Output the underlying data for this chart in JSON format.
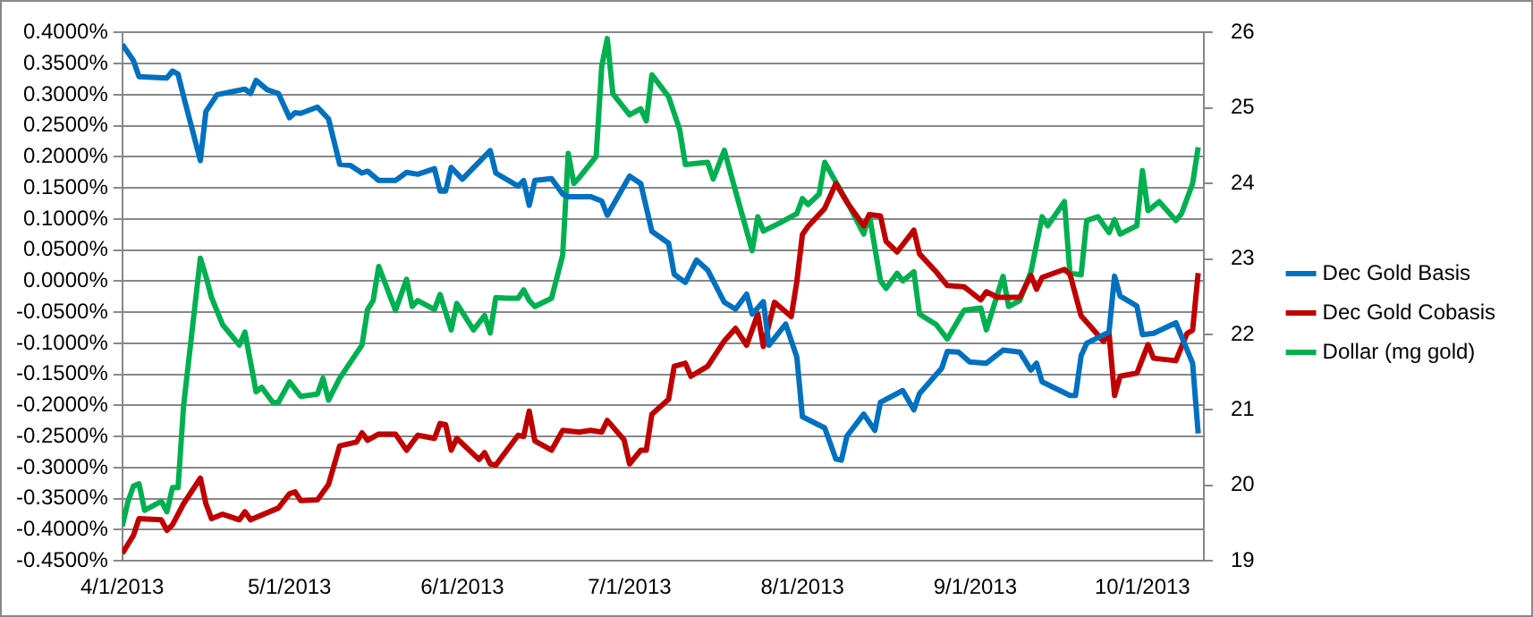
{
  "chart_data": {
    "type": "line",
    "grid": "y",
    "legend": "right",
    "marker": "none",
    "line_style": "solid",
    "xlim": [
      "2013-04-01",
      "2013-10-12"
    ],
    "xticks": [
      {
        "value": "2013-04-01",
        "label": "4/1/2013"
      },
      {
        "value": "2013-05-01",
        "label": "5/1/2013"
      },
      {
        "value": "2013-06-01",
        "label": "6/1/2013"
      },
      {
        "value": "2013-07-01",
        "label": "7/1/2013"
      },
      {
        "value": "2013-08-01",
        "label": "8/1/2013"
      },
      {
        "value": "2013-09-01",
        "label": "9/1/2013"
      },
      {
        "value": "2013-10-01",
        "label": "10/1/2013"
      }
    ],
    "ylim": [
      -0.45,
      0.4
    ],
    "yticks": [
      {
        "value": 0.4,
        "label": "0.4000%"
      },
      {
        "value": 0.35,
        "label": "0.3500%"
      },
      {
        "value": 0.3,
        "label": "0.3000%"
      },
      {
        "value": 0.25,
        "label": "0.2500%"
      },
      {
        "value": 0.2,
        "label": "0.2000%"
      },
      {
        "value": 0.15,
        "label": "0.1500%"
      },
      {
        "value": 0.1,
        "label": "0.1000%"
      },
      {
        "value": 0.05,
        "label": "0.0500%"
      },
      {
        "value": 0,
        "label": "0.0000%"
      },
      {
        "value": -0.05,
        "label": "-0.0500%"
      },
      {
        "value": -0.1,
        "label": "-0.1000%"
      },
      {
        "value": -0.15,
        "label": "-0.1500%"
      },
      {
        "value": -0.2,
        "label": "-0.2000%"
      },
      {
        "value": -0.25,
        "label": "-0.2500%"
      },
      {
        "value": -0.3,
        "label": "-0.3000%"
      },
      {
        "value": -0.35,
        "label": "-0.3500%"
      },
      {
        "value": -0.4,
        "label": "-0.4000%"
      },
      {
        "value": -0.45,
        "label": "-0.4500%"
      }
    ],
    "y2lim": [
      19,
      26
    ],
    "y2ticks": [
      19,
      20,
      21,
      22,
      23,
      24,
      25,
      26
    ],
    "series": [
      {
        "name": "Dec Gold Basis",
        "color": "#0070c0",
        "x": [
          "2013-04-01",
          "2013-04-03",
          "2013-04-04",
          "2013-04-09",
          "2013-04-10",
          "2013-04-11",
          "2013-04-12",
          "2013-04-15",
          "2013-04-16",
          "2013-04-18",
          "2013-04-23",
          "2013-04-24",
          "2013-04-25",
          "2013-04-27",
          "2013-04-29",
          "2013-05-01",
          "2013-05-02",
          "2013-05-03",
          "2013-05-06",
          "2013-05-08",
          "2013-05-10",
          "2013-05-12",
          "2013-05-14",
          "2013-05-15",
          "2013-05-17",
          "2013-05-20",
          "2013-05-22",
          "2013-05-24",
          "2013-05-27",
          "2013-05-28",
          "2013-05-29",
          "2013-05-30",
          "2013-06-01",
          "2013-06-06",
          "2013-06-07",
          "2013-06-11",
          "2013-06-12",
          "2013-06-13",
          "2013-06-14",
          "2013-06-17",
          "2013-06-19",
          "2013-06-20",
          "2013-06-24",
          "2013-06-26",
          "2013-06-27",
          "2013-07-01",
          "2013-07-03",
          "2013-07-05",
          "2013-07-08",
          "2013-07-09",
          "2013-07-11",
          "2013-07-13",
          "2013-07-15",
          "2013-07-18",
          "2013-07-20",
          "2013-07-22",
          "2013-07-23",
          "2013-07-25",
          "2013-07-26",
          "2013-07-29",
          "2013-07-31",
          "2013-08-01",
          "2013-08-05",
          "2013-08-07",
          "2013-08-08",
          "2013-08-09",
          "2013-08-12",
          "2013-08-14",
          "2013-08-15",
          "2013-08-19",
          "2013-08-21",
          "2013-08-22",
          "2013-08-26",
          "2013-08-27",
          "2013-08-29",
          "2013-08-31",
          "2013-09-03",
          "2013-09-06",
          "2013-09-09",
          "2013-09-11",
          "2013-09-12",
          "2013-09-13",
          "2013-09-18",
          "2013-09-19",
          "2013-09-20",
          "2013-09-21",
          "2013-09-25",
          "2013-09-26",
          "2013-09-27",
          "2013-09-30",
          "2013-10-01",
          "2013-10-03",
          "2013-10-07",
          "2013-10-10",
          "2013-10-11"
        ],
        "values": [
          0.381,
          0.355,
          0.329,
          0.327,
          0.338,
          0.333,
          0.297,
          0.194,
          0.273,
          0.3,
          0.309,
          0.302,
          0.323,
          0.308,
          0.302,
          0.263,
          0.271,
          0.27,
          0.28,
          0.261,
          0.188,
          0.186,
          0.174,
          0.177,
          0.162,
          0.162,
          0.175,
          0.172,
          0.181,
          0.145,
          0.145,
          0.183,
          0.164,
          0.21,
          0.174,
          0.153,
          0.162,
          0.122,
          0.162,
          0.165,
          0.14,
          0.136,
          0.136,
          0.129,
          0.106,
          0.169,
          0.157,
          0.08,
          0.061,
          0.011,
          -0.002,
          0.034,
          0.018,
          -0.034,
          -0.045,
          -0.021,
          -0.053,
          -0.033,
          -0.103,
          -0.069,
          -0.122,
          -0.218,
          -0.236,
          -0.286,
          -0.288,
          -0.249,
          -0.214,
          -0.24,
          -0.195,
          -0.176,
          -0.207,
          -0.181,
          -0.14,
          -0.113,
          -0.114,
          -0.13,
          -0.132,
          -0.111,
          -0.114,
          -0.143,
          -0.132,
          -0.162,
          -0.184,
          -0.184,
          -0.12,
          -0.1,
          -0.082,
          0.008,
          -0.024,
          -0.04,
          -0.086,
          -0.084,
          -0.067,
          -0.132,
          -0.245
        ]
      },
      {
        "name": "Dec Gold Cobasis",
        "color": "#c00000",
        "x": [
          "2013-04-01",
          "2013-04-03",
          "2013-04-04",
          "2013-04-08",
          "2013-04-09",
          "2013-04-10",
          "2013-04-12",
          "2013-04-15",
          "2013-04-16",
          "2013-04-17",
          "2013-04-19",
          "2013-04-22",
          "2013-04-23",
          "2013-04-24",
          "2013-04-29",
          "2013-05-01",
          "2013-05-02",
          "2013-05-03",
          "2013-05-06",
          "2013-05-08",
          "2013-05-10",
          "2013-05-13",
          "2013-05-14",
          "2013-05-15",
          "2013-05-17",
          "2013-05-20",
          "2013-05-22",
          "2013-05-24",
          "2013-05-27",
          "2013-05-28",
          "2013-05-29",
          "2013-05-30",
          "2013-05-31",
          "2013-06-04",
          "2013-06-05",
          "2013-06-06",
          "2013-06-07",
          "2013-06-11",
          "2013-06-12",
          "2013-06-13",
          "2013-06-14",
          "2013-06-17",
          "2013-06-19",
          "2013-06-22",
          "2013-06-24",
          "2013-06-26",
          "2013-06-27",
          "2013-06-30",
          "2013-07-01",
          "2013-07-03",
          "2013-07-04",
          "2013-07-05",
          "2013-07-08",
          "2013-07-09",
          "2013-07-11",
          "2013-07-12",
          "2013-07-15",
          "2013-07-18",
          "2013-07-20",
          "2013-07-22",
          "2013-07-24",
          "2013-07-25",
          "2013-07-27",
          "2013-07-30",
          "2013-07-31",
          "2013-08-01",
          "2013-08-02",
          "2013-08-05",
          "2013-08-07",
          "2013-08-09",
          "2013-08-12",
          "2013-08-13",
          "2013-08-15",
          "2013-08-16",
          "2013-08-18",
          "2013-08-21",
          "2013-08-22",
          "2013-08-25",
          "2013-08-27",
          "2013-08-30",
          "2013-09-02",
          "2013-09-03",
          "2013-09-05",
          "2013-09-09",
          "2013-09-11",
          "2013-09-12",
          "2013-09-13",
          "2013-09-17",
          "2013-09-18",
          "2013-09-20",
          "2013-09-22",
          "2013-09-24",
          "2013-09-25",
          "2013-09-26",
          "2013-09-27",
          "2013-09-30",
          "2013-10-02",
          "2013-10-03",
          "2013-10-07",
          "2013-10-09",
          "2013-10-10",
          "2013-10-11"
        ],
        "values": [
          -0.438,
          -0.409,
          -0.382,
          -0.384,
          -0.401,
          -0.392,
          -0.358,
          -0.317,
          -0.358,
          -0.382,
          -0.375,
          -0.384,
          -0.371,
          -0.384,
          -0.365,
          -0.342,
          -0.339,
          -0.353,
          -0.352,
          -0.327,
          -0.265,
          -0.259,
          -0.244,
          -0.256,
          -0.246,
          -0.246,
          -0.272,
          -0.248,
          -0.253,
          -0.229,
          -0.231,
          -0.272,
          -0.253,
          -0.287,
          -0.276,
          -0.294,
          -0.296,
          -0.248,
          -0.25,
          -0.209,
          -0.257,
          -0.272,
          -0.24,
          -0.243,
          -0.24,
          -0.243,
          -0.224,
          -0.255,
          -0.294,
          -0.272,
          -0.272,
          -0.214,
          -0.19,
          -0.137,
          -0.132,
          -0.153,
          -0.137,
          -0.096,
          -0.076,
          -0.103,
          -0.053,
          -0.105,
          -0.034,
          -0.057,
          -0.001,
          0.075,
          0.088,
          0.117,
          0.157,
          0.127,
          0.089,
          0.107,
          0.105,
          0.064,
          0.047,
          0.082,
          0.044,
          0.015,
          -0.007,
          -0.009,
          -0.03,
          -0.017,
          -0.026,
          -0.026,
          0.009,
          -0.013,
          0.006,
          0.019,
          0.011,
          -0.056,
          -0.076,
          -0.097,
          -0.083,
          -0.184,
          -0.153,
          -0.148,
          -0.102,
          -0.124,
          -0.128,
          -0.084,
          -0.079,
          0.013
        ]
      },
      {
        "name": "Dollar (mg gold)",
        "color": "#00b050",
        "axis": "y2",
        "x": [
          "2013-04-01",
          "2013-04-02",
          "2013-04-03",
          "2013-04-04",
          "2013-04-05",
          "2013-04-08",
          "2013-04-09",
          "2013-04-10",
          "2013-04-11",
          "2013-04-12",
          "2013-04-15",
          "2013-04-16",
          "2013-04-17",
          "2013-04-19",
          "2013-04-22",
          "2013-04-23",
          "2013-04-25",
          "2013-04-26",
          "2013-04-28",
          "2013-04-29",
          "2013-05-01",
          "2013-05-03",
          "2013-05-06",
          "2013-05-07",
          "2013-05-08",
          "2013-05-10",
          "2013-05-14",
          "2013-05-15",
          "2013-05-16",
          "2013-05-17",
          "2013-05-20",
          "2013-05-22",
          "2013-05-23",
          "2013-05-24",
          "2013-05-27",
          "2013-05-28",
          "2013-05-30",
          "2013-05-31",
          "2013-06-03",
          "2013-06-05",
          "2013-06-06",
          "2013-06-07",
          "2013-06-09",
          "2013-06-11",
          "2013-06-12",
          "2013-06-13",
          "2013-06-14",
          "2013-06-17",
          "2013-06-19",
          "2013-06-20",
          "2013-06-21",
          "2013-06-22",
          "2013-06-25",
          "2013-06-26",
          "2013-06-27",
          "2013-06-28",
          "2013-07-01",
          "2013-07-03",
          "2013-07-04",
          "2013-07-05",
          "2013-07-08",
          "2013-07-10",
          "2013-07-11",
          "2013-07-15",
          "2013-07-16",
          "2013-07-18",
          "2013-07-20",
          "2013-07-23",
          "2013-07-24",
          "2013-07-25",
          "2013-07-28",
          "2013-07-31",
          "2013-08-01",
          "2013-08-02",
          "2013-08-04",
          "2013-08-05",
          "2013-08-09",
          "2013-08-12",
          "2013-08-13",
          "2013-08-15",
          "2013-08-16",
          "2013-08-18",
          "2013-08-19",
          "2013-08-21",
          "2013-08-22",
          "2013-08-25",
          "2013-08-27",
          "2013-08-30",
          "2013-09-02",
          "2013-09-03",
          "2013-09-06",
          "2013-09-07",
          "2013-09-09",
          "2013-09-11",
          "2013-09-13",
          "2013-09-14",
          "2013-09-17",
          "2013-09-18",
          "2013-09-20",
          "2013-09-21",
          "2013-09-23",
          "2013-09-25",
          "2013-09-26",
          "2013-09-27",
          "2013-09-30",
          "2013-10-01",
          "2013-10-02",
          "2013-10-04",
          "2013-10-07",
          "2013-10-08",
          "2013-10-10",
          "2013-10-11"
        ],
        "values": [
          19.46,
          19.78,
          19.99,
          20.02,
          19.67,
          19.79,
          19.65,
          19.97,
          19.97,
          21.06,
          23.01,
          22.77,
          22.49,
          22.13,
          21.86,
          22.03,
          21.24,
          21.3,
          21.1,
          21.1,
          21.37,
          21.18,
          21.21,
          21.42,
          21.13,
          21.42,
          21.86,
          22.33,
          22.45,
          22.9,
          22.32,
          22.73,
          22.37,
          22.45,
          22.33,
          22.53,
          22.06,
          22.41,
          22.06,
          22.25,
          22.02,
          22.49,
          22.48,
          22.48,
          22.59,
          22.45,
          22.37,
          22.48,
          23.05,
          24.4,
          24.0,
          24.08,
          24.36,
          25.55,
          25.92,
          25.19,
          24.91,
          24.99,
          24.83,
          25.44,
          25.15,
          24.71,
          24.25,
          24.28,
          24.06,
          24.44,
          23.9,
          23.11,
          23.56,
          23.37,
          23.48,
          23.6,
          23.8,
          23.72,
          23.86,
          24.28,
          23.76,
          23.33,
          23.59,
          22.71,
          22.61,
          22.81,
          22.71,
          22.83,
          22.27,
          22.13,
          21.94,
          22.32,
          22.35,
          22.06,
          22.77,
          22.37,
          22.45,
          22.83,
          23.56,
          23.44,
          23.76,
          22.81,
          22.79,
          23.51,
          23.56,
          23.35,
          23.52,
          23.33,
          23.44,
          24.17,
          23.64,
          23.76,
          23.51,
          23.6,
          24.0,
          24.48
        ]
      }
    ]
  }
}
